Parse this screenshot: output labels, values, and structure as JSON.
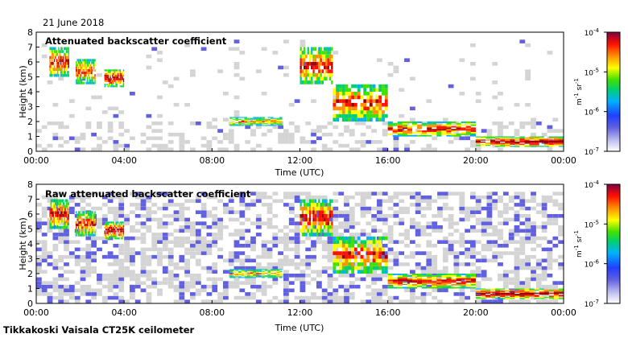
{
  "date_label": "21 June 2018",
  "site_label": "Tikkakoski Vaisala CT25K ceilometer",
  "chart_data": [
    {
      "type": "heatmap",
      "title": "Attenuated backscatter coefficient",
      "xlabel": "Time (UTC)",
      "ylabel": "Height (km)",
      "x_ticks": [
        "00:00",
        "04:00",
        "08:00",
        "12:00",
        "16:00",
        "20:00",
        "00:00"
      ],
      "y_ticks": [
        "0",
        "1",
        "2",
        "3",
        "4",
        "5",
        "6",
        "7",
        "8"
      ],
      "xlim_hours": [
        0,
        24
      ],
      "ylim_km": [
        0,
        8
      ],
      "colorbar": {
        "ticks": [
          "10",
          "10",
          "10",
          "10"
        ],
        "exponents": [
          "-4",
          "-5",
          "-6",
          "-7"
        ],
        "unit": "m",
        "unit_exp1": "-1",
        "unit_sr": "sr",
        "unit_exp2": "-1",
        "scale": "log",
        "range": [
          1e-07,
          0.0001
        ]
      },
      "cloud_layers": [
        {
          "t0": 0.6,
          "t1": 1.5,
          "h0": 5.0,
          "h1": 7.0,
          "level": 0.9
        },
        {
          "t0": 1.8,
          "t1": 2.7,
          "h0": 4.5,
          "h1": 6.2,
          "level": 0.85
        },
        {
          "t0": 3.1,
          "t1": 4.0,
          "h0": 4.3,
          "h1": 5.5,
          "level": 0.95
        },
        {
          "t0": 8.8,
          "t1": 11.2,
          "h0": 1.7,
          "h1": 2.3,
          "level": 0.75
        },
        {
          "t0": 12.0,
          "t1": 13.5,
          "h0": 4.5,
          "h1": 7.0,
          "level": 0.9
        },
        {
          "t0": 13.5,
          "t1": 16.0,
          "h0": 2.0,
          "h1": 4.5,
          "level": 0.85
        },
        {
          "t0": 16.0,
          "t1": 20.0,
          "h0": 1.0,
          "h1": 2.0,
          "level": 0.9
        },
        {
          "t0": 20.0,
          "t1": 24.0,
          "h0": 0.3,
          "h1": 1.0,
          "level": 1.0
        }
      ],
      "noise": "low"
    },
    {
      "type": "heatmap",
      "title": "Raw attenuated backscatter coefficient",
      "xlabel": "Time (UTC)",
      "ylabel": "Height (km)",
      "x_ticks": [
        "00:00",
        "04:00",
        "08:00",
        "12:00",
        "16:00",
        "20:00",
        "00:00"
      ],
      "y_ticks": [
        "0",
        "1",
        "2",
        "3",
        "4",
        "5",
        "6",
        "7",
        "8"
      ],
      "xlim_hours": [
        0,
        24
      ],
      "ylim_km": [
        0,
        8
      ],
      "colorbar": {
        "ticks": [
          "10",
          "10",
          "10",
          "10"
        ],
        "exponents": [
          "-4",
          "-5",
          "-6",
          "-7"
        ],
        "unit": "m",
        "unit_exp1": "-1",
        "unit_sr": "sr",
        "unit_exp2": "-1",
        "scale": "log",
        "range": [
          1e-07,
          0.0001
        ]
      },
      "cloud_layers": [
        {
          "t0": 0.6,
          "t1": 1.5,
          "h0": 5.0,
          "h1": 7.0,
          "level": 0.9
        },
        {
          "t0": 1.8,
          "t1": 2.7,
          "h0": 4.5,
          "h1": 6.2,
          "level": 0.85
        },
        {
          "t0": 3.1,
          "t1": 4.0,
          "h0": 4.3,
          "h1": 5.5,
          "level": 0.95
        },
        {
          "t0": 8.8,
          "t1": 11.2,
          "h0": 1.7,
          "h1": 2.3,
          "level": 0.75
        },
        {
          "t0": 12.0,
          "t1": 13.5,
          "h0": 4.5,
          "h1": 7.0,
          "level": 0.9
        },
        {
          "t0": 13.5,
          "t1": 16.0,
          "h0": 2.0,
          "h1": 4.5,
          "level": 0.85
        },
        {
          "t0": 16.0,
          "t1": 20.0,
          "h0": 1.0,
          "h1": 2.0,
          "level": 0.9
        },
        {
          "t0": 20.0,
          "t1": 24.0,
          "h0": 0.3,
          "h1": 1.0,
          "level": 1.0
        }
      ],
      "noise": "high"
    }
  ],
  "colors": {
    "background_noise": "#d4d4d4",
    "colormap": [
      "#ffffff",
      "#c8c8f0",
      "#6060e0",
      "#2040ff",
      "#00b0ff",
      "#00d070",
      "#40e000",
      "#ffff00",
      "#ff9000",
      "#ff1000",
      "#a00000"
    ]
  }
}
